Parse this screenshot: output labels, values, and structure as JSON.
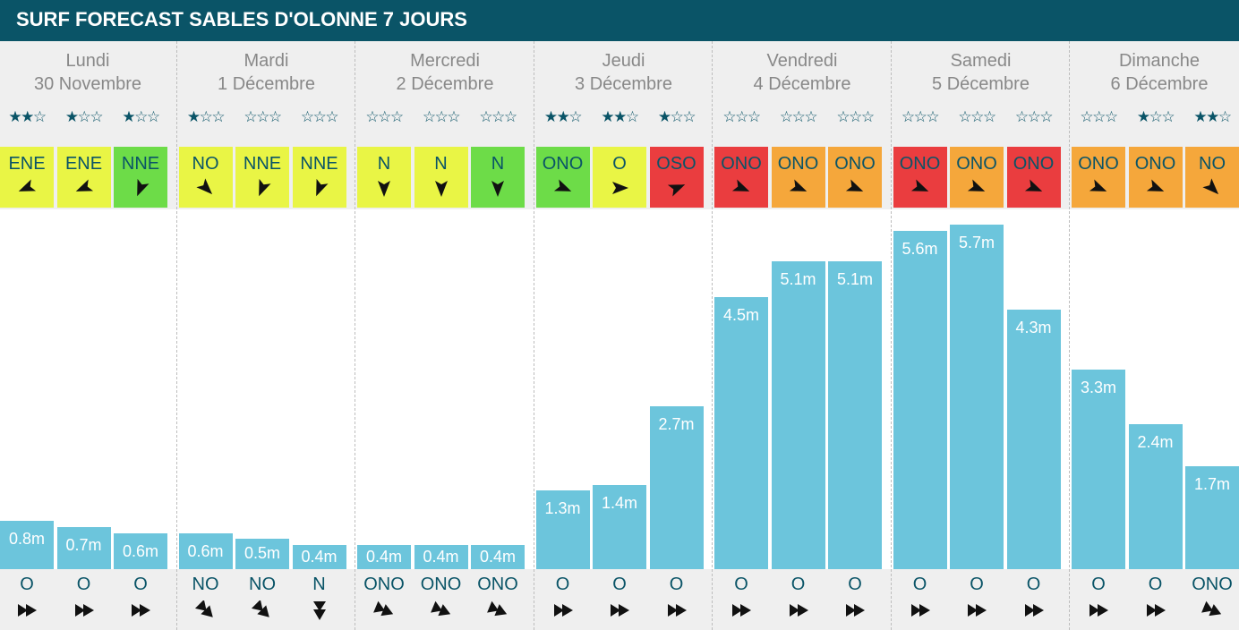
{
  "header": {
    "title": "SURF FORECAST SABLES D'OLONNE 7 JOURS"
  },
  "colors": {
    "wind_yellow": "#e9f545",
    "wind_green": "#6ddc48",
    "wind_orange": "#f5a73b",
    "wind_red": "#ea3d3f",
    "bar": "#6cc5dc",
    "title_bg": "#0a5467"
  },
  "chart_data": {
    "type": "bar",
    "unit": "m",
    "ylim": [
      0,
      6
    ],
    "days": [
      {
        "name": "Lundi",
        "date": "30 Novembre",
        "slots": [
          {
            "stars": 2,
            "wind_dir": "ENE",
            "wind_color": "yellow",
            "wave_height": 0.8,
            "wave_label": "0.8m",
            "swell_dir": "O"
          },
          {
            "stars": 1,
            "wind_dir": "ENE",
            "wind_color": "yellow",
            "wave_height": 0.7,
            "wave_label": "0.7m",
            "swell_dir": "O"
          },
          {
            "stars": 1,
            "wind_dir": "NNE",
            "wind_color": "green",
            "wave_height": 0.6,
            "wave_label": "0.6m",
            "swell_dir": "O"
          }
        ]
      },
      {
        "name": "Mardi",
        "date": "1 Décembre",
        "slots": [
          {
            "stars": 1,
            "wind_dir": "NO",
            "wind_color": "yellow",
            "wave_height": 0.6,
            "wave_label": "0.6m",
            "swell_dir": "NO"
          },
          {
            "stars": 0,
            "wind_dir": "NNE",
            "wind_color": "yellow",
            "wave_height": 0.5,
            "wave_label": "0.5m",
            "swell_dir": "NO"
          },
          {
            "stars": 0,
            "wind_dir": "NNE",
            "wind_color": "yellow",
            "wave_height": 0.4,
            "wave_label": "0.4m",
            "swell_dir": "N"
          }
        ]
      },
      {
        "name": "Mercredi",
        "date": "2 Décembre",
        "slots": [
          {
            "stars": 0,
            "wind_dir": "N",
            "wind_color": "yellow",
            "wave_height": 0.4,
            "wave_label": "0.4m",
            "swell_dir": "ONO"
          },
          {
            "stars": 0,
            "wind_dir": "N",
            "wind_color": "yellow",
            "wave_height": 0.4,
            "wave_label": "0.4m",
            "swell_dir": "ONO"
          },
          {
            "stars": 0,
            "wind_dir": "N",
            "wind_color": "green",
            "wave_height": 0.4,
            "wave_label": "0.4m",
            "swell_dir": "ONO"
          }
        ]
      },
      {
        "name": "Jeudi",
        "date": "3 Décembre",
        "slots": [
          {
            "stars": 2,
            "wind_dir": "ONO",
            "wind_color": "green",
            "wave_height": 1.3,
            "wave_label": "1.3m",
            "swell_dir": "O"
          },
          {
            "stars": 2,
            "wind_dir": "O",
            "wind_color": "yellow",
            "wave_height": 1.4,
            "wave_label": "1.4m",
            "swell_dir": "O"
          },
          {
            "stars": 1,
            "wind_dir": "OSO",
            "wind_color": "red",
            "wave_height": 2.7,
            "wave_label": "2.7m",
            "swell_dir": "O"
          }
        ]
      },
      {
        "name": "Vendredi",
        "date": "4 Décembre",
        "slots": [
          {
            "stars": 0,
            "wind_dir": "ONO",
            "wind_color": "red",
            "wave_height": 4.5,
            "wave_label": "4.5m",
            "swell_dir": "O"
          },
          {
            "stars": 0,
            "wind_dir": "ONO",
            "wind_color": "orange",
            "wave_height": 5.1,
            "wave_label": "5.1m",
            "swell_dir": "O"
          },
          {
            "stars": 0,
            "wind_dir": "ONO",
            "wind_color": "orange",
            "wave_height": 5.1,
            "wave_label": "5.1m",
            "swell_dir": "O"
          }
        ]
      },
      {
        "name": "Samedi",
        "date": "5 Décembre",
        "slots": [
          {
            "stars": 0,
            "wind_dir": "ONO",
            "wind_color": "red",
            "wave_height": 5.6,
            "wave_label": "5.6m",
            "swell_dir": "O"
          },
          {
            "stars": 0,
            "wind_dir": "ONO",
            "wind_color": "orange",
            "wave_height": 5.7,
            "wave_label": "5.7m",
            "swell_dir": "O"
          },
          {
            "stars": 0,
            "wind_dir": "ONO",
            "wind_color": "red",
            "wave_height": 4.3,
            "wave_label": "4.3m",
            "swell_dir": "O"
          }
        ]
      },
      {
        "name": "Dimanche",
        "date": "6 Décembre",
        "slots": [
          {
            "stars": 0,
            "wind_dir": "ONO",
            "wind_color": "orange",
            "wave_height": 3.3,
            "wave_label": "3.3m",
            "swell_dir": "O"
          },
          {
            "stars": 1,
            "wind_dir": "ONO",
            "wind_color": "orange",
            "wave_height": 2.4,
            "wave_label": "2.4m",
            "swell_dir": "O"
          },
          {
            "stars": 2,
            "wind_dir": "NO",
            "wind_color": "orange",
            "wave_height": 1.7,
            "wave_label": "1.7m",
            "swell_dir": "ONO"
          }
        ]
      }
    ]
  }
}
